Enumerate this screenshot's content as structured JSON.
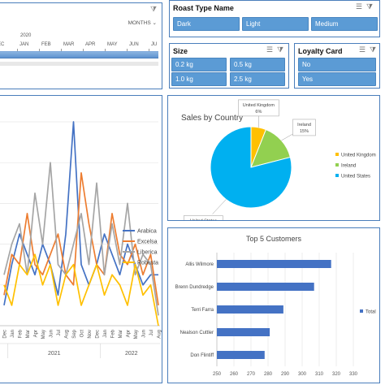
{
  "timeline": {
    "year": "2020",
    "level": "MONTHS",
    "months": [
      "EC",
      "JAN",
      "FEB",
      "MAR",
      "APR",
      "MAY",
      "JUN",
      "JU"
    ]
  },
  "slicers": {
    "roast": {
      "title": "Roast Type Name",
      "items": [
        "Dark",
        "Light",
        "Medium"
      ]
    },
    "size": {
      "title": "Size",
      "items": [
        "0.2 kg",
        "0.5 kg",
        "1.0 kg",
        "2.5 kg"
      ]
    },
    "loyalty": {
      "title": "Loyalty Card",
      "items": [
        "No",
        "Yes"
      ]
    }
  },
  "icons": {
    "multiselect": "multi-select-icon",
    "clearfilter": "clear-filter-icon",
    "timelinefilter": "timeline-filter-icon"
  },
  "colors": {
    "accent": "#5b9bd5",
    "border": "#4a7ebb"
  },
  "chart_data": [
    {
      "type": "line",
      "title": "",
      "xlabel": "",
      "ylabel": "",
      "x": [
        "Dec",
        "Jan",
        "Feb",
        "Mar",
        "Apr",
        "May",
        "Jun",
        "Jul",
        "Aug",
        "Sep",
        "Oct",
        "Nov",
        "Dec",
        "Jan",
        "Feb",
        "Mar",
        "Apr",
        "May",
        "Jun",
        "Jul",
        "Aug"
      ],
      "year_groups": [
        {
          "label": "2021",
          "start": 1,
          "end": 12
        },
        {
          "label": "2022",
          "start": 13,
          "end": 20
        }
      ],
      "series": [
        {
          "name": "Arabica",
          "color": "#4472c4",
          "values": [
            10,
            30,
            45,
            35,
            25,
            40,
            30,
            15,
            45,
            100,
            30,
            20,
            30,
            45,
            35,
            25,
            40,
            30,
            20,
            25,
            25
          ]
        },
        {
          "name": "Excelsa",
          "color": "#ed7d31",
          "values": [
            15,
            35,
            30,
            55,
            30,
            25,
            35,
            45,
            25,
            20,
            75,
            50,
            30,
            25,
            55,
            35,
            30,
            40,
            25,
            35,
            10
          ]
        },
        {
          "name": "Liberica",
          "color": "#a5a5a5",
          "values": [
            25,
            40,
            50,
            25,
            65,
            40,
            80,
            30,
            25,
            40,
            55,
            30,
            70,
            25,
            50,
            30,
            60,
            25,
            35,
            30,
            5
          ]
        },
        {
          "name": "Robusta",
          "color": "#ffc000",
          "values": [
            20,
            10,
            30,
            25,
            35,
            20,
            30,
            10,
            25,
            30,
            10,
            20,
            30,
            15,
            25,
            20,
            10,
            30,
            15,
            20,
            0
          ]
        }
      ]
    },
    {
      "type": "pie",
      "title": "Sales by Country",
      "categories": [
        "United Kingdom",
        "Ireland",
        "United States"
      ],
      "values": [
        6,
        15,
        79
      ],
      "value_labels": [
        "6%",
        "15%",
        "79%"
      ],
      "colors": [
        "#ffc000",
        "#92d050",
        "#00b0f0"
      ],
      "legend": "right"
    },
    {
      "type": "bar",
      "orientation": "horizontal",
      "title": "Top 5 Customers",
      "categories": [
        "Allis Wilmore",
        "Brenn Dundredge",
        "Terri Farra",
        "Nealson Cuttler",
        "Don Flintiff"
      ],
      "values": [
        317,
        307,
        289,
        281,
        278
      ],
      "series_name": "Total",
      "color": "#4472c4",
      "xlim": [
        250,
        330
      ],
      "xticks": [
        250,
        260,
        270,
        280,
        290,
        300,
        310,
        320,
        330
      ],
      "legend": "right"
    }
  ]
}
